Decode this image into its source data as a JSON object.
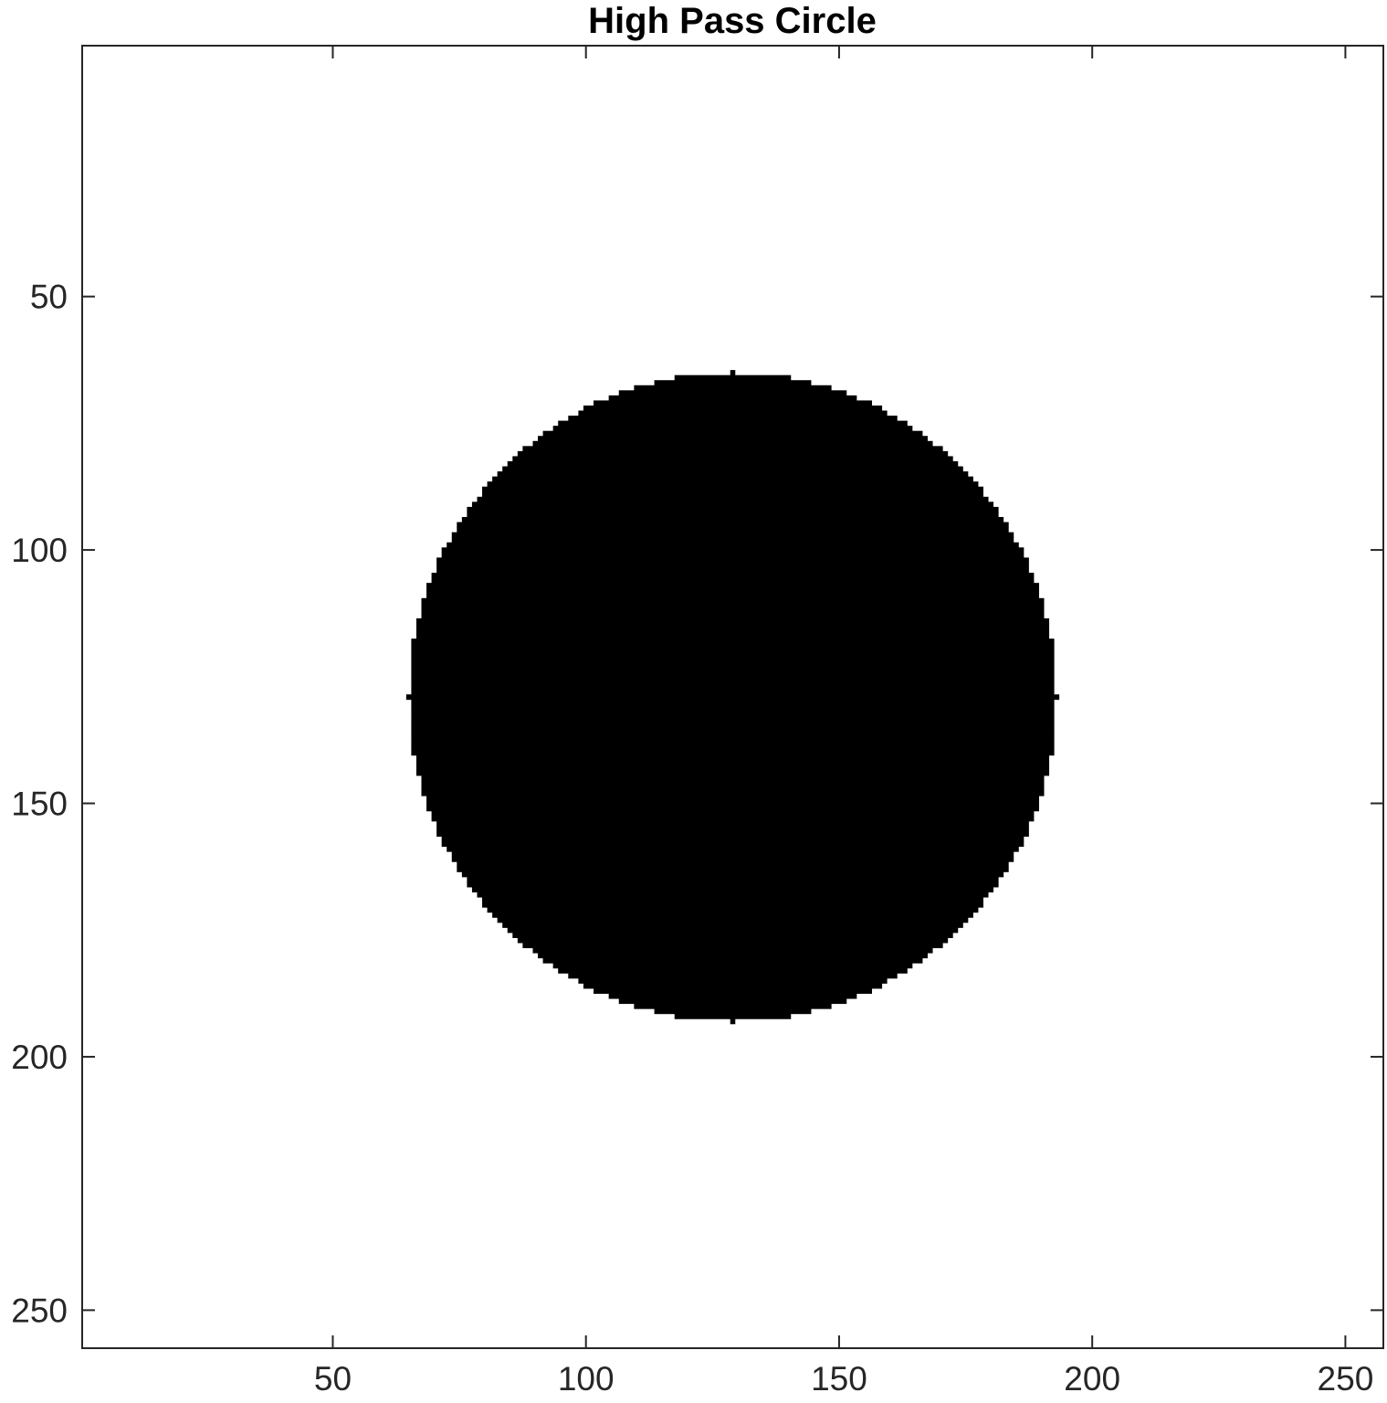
{
  "chart_data": {
    "type": "heatmap",
    "title": "High Pass Circle",
    "xlabel": "",
    "ylabel": "",
    "xlim": [
      0.5,
      257.5
    ],
    "ylim": [
      0.5,
      257.5
    ],
    "y_reversed": true,
    "grid": false,
    "image_size": [
      257,
      257
    ],
    "colormap": "gray",
    "values_inside": 0,
    "values_outside": 1,
    "circle_center": [
      129,
      129
    ],
    "circle_radius": 64,
    "xticks": [
      50,
      100,
      150,
      200,
      250
    ],
    "yticks": [
      50,
      100,
      150,
      200,
      250
    ],
    "xtick_labels": [
      "50",
      "100",
      "150",
      "200",
      "250"
    ],
    "ytick_labels": [
      "50",
      "100",
      "150",
      "200",
      "250"
    ],
    "colors": {
      "inside": "#000000",
      "outside": "#ffffff",
      "axis": "#262626"
    }
  }
}
